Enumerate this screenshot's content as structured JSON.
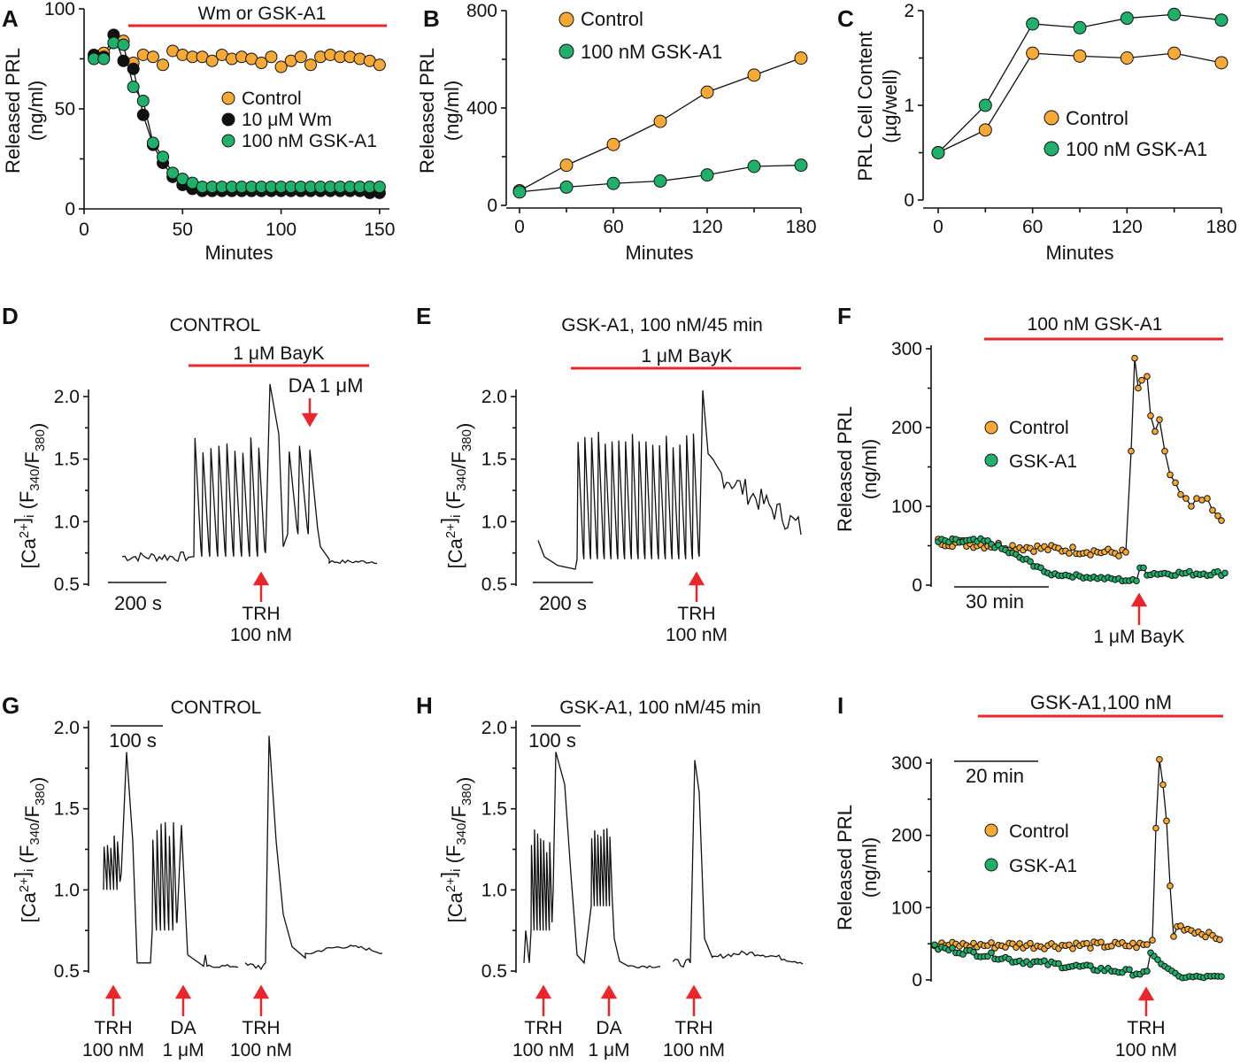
{
  "colors": {
    "control": "#f6a935",
    "wm": "#111111",
    "gsk": "#1fb06b",
    "red": "#e8262b"
  },
  "chart_data": [
    {
      "panel": "A",
      "type": "scatter",
      "xlabel": "Minutes",
      "ylabel": "Released PRL (ng/ml)",
      "xlim": [
        0,
        155
      ],
      "ylim": [
        0,
        100
      ],
      "xticks": [
        "0",
        "50",
        "100",
        "150"
      ],
      "yticks": [
        "0",
        "50",
        "100"
      ],
      "bar_label": "Wm or GSK-A1",
      "legend": [
        "Control",
        "10 μM Wm",
        "100 nM GSK-A1"
      ],
      "series": [
        {
          "name": "Control",
          "x": [
            5,
            10,
            15,
            20,
            25,
            30,
            35,
            40,
            45,
            50,
            55,
            60,
            65,
            70,
            75,
            80,
            85,
            90,
            95,
            100,
            105,
            110,
            115,
            120,
            125,
            130,
            135,
            140,
            145,
            150
          ],
          "y": [
            76,
            78,
            83,
            84,
            73,
            77,
            76,
            72,
            79,
            77,
            76,
            76,
            74,
            77,
            75,
            76,
            75,
            73,
            76,
            71,
            74,
            76,
            72,
            76,
            77,
            76,
            76,
            75,
            74,
            72
          ]
        },
        {
          "name": "10 μM Wm",
          "x": [
            5,
            10,
            15,
            20,
            25,
            30,
            35,
            40,
            45,
            50,
            55,
            60,
            65,
            70,
            75,
            80,
            85,
            90,
            95,
            100,
            105,
            110,
            115,
            120,
            125,
            130,
            135,
            140,
            145,
            150
          ],
          "y": [
            77,
            76,
            87,
            74,
            70,
            47,
            32,
            23,
            16,
            12,
            10,
            9,
            9,
            9,
            9,
            9,
            9,
            9,
            9,
            9,
            9,
            9,
            9,
            9,
            9,
            9,
            9,
            9,
            8,
            8
          ]
        },
        {
          "name": "100 nM GSK-A1",
          "x": [
            5,
            10,
            15,
            20,
            25,
            30,
            35,
            40,
            45,
            50,
            55,
            60,
            65,
            70,
            75,
            80,
            85,
            90,
            95,
            100,
            105,
            110,
            115,
            120,
            125,
            130,
            135,
            140,
            145,
            150
          ],
          "y": [
            75,
            75,
            83,
            82,
            61,
            54,
            33,
            26,
            18,
            15,
            13,
            11,
            11,
            11,
            11,
            11,
            11,
            11,
            11,
            11,
            11,
            11,
            11,
            11,
            11,
            11,
            11,
            11,
            11,
            11
          ]
        }
      ]
    },
    {
      "panel": "B",
      "type": "line",
      "xlabel": "Minutes",
      "ylabel": "Released PRL (ng/ml)",
      "xlim": [
        0,
        180
      ],
      "ylim": [
        0,
        800
      ],
      "xticks": [
        "0",
        "60",
        "120",
        "180"
      ],
      "yticks": [
        "0",
        "400",
        "800"
      ],
      "legend": [
        "Control",
        "100 nM GSK-A1"
      ],
      "series": [
        {
          "name": "Control",
          "x": [
            0,
            30,
            60,
            90,
            120,
            150,
            180
          ],
          "y": [
            60,
            165,
            250,
            345,
            465,
            535,
            605
          ]
        },
        {
          "name": "100 nM GSK-A1",
          "x": [
            0,
            30,
            60,
            90,
            120,
            150,
            180
          ],
          "y": [
            55,
            75,
            90,
            100,
            125,
            160,
            165
          ]
        }
      ]
    },
    {
      "panel": "C",
      "type": "line",
      "xlabel": "Minutes",
      "ylabel": "PRL Cell Content (μg/well)",
      "xlim": [
        0,
        180
      ],
      "ylim": [
        0,
        2
      ],
      "xticks": [
        "0",
        "60",
        "120",
        "180"
      ],
      "yticks": [
        "0",
        "1",
        "2"
      ],
      "legend": [
        "Control",
        "100 nM GSK-A1"
      ],
      "series": [
        {
          "name": "Control",
          "x": [
            0,
            30,
            60,
            90,
            120,
            150,
            180
          ],
          "y": [
            0.5,
            0.74,
            1.55,
            1.52,
            1.5,
            1.55,
            1.45
          ]
        },
        {
          "name": "100 nM GSK-A1",
          "x": [
            0,
            30,
            60,
            90,
            120,
            150,
            180
          ],
          "y": [
            0.5,
            1.0,
            1.86,
            1.82,
            1.92,
            1.96,
            1.9
          ]
        }
      ]
    },
    {
      "panel": "D",
      "type": "line",
      "title": "CONTROL",
      "ylabel": "[Ca2+]i (F340/F380)",
      "ylim": [
        0.5,
        2.0
      ],
      "yticks": [
        "0.5",
        "1.0",
        "1.5",
        "2.0"
      ],
      "scale_bar": "200 s",
      "bar_label": "1 μM BayK",
      "annotations": [
        "DA 1 μM",
        "TRH",
        "100 nM"
      ]
    },
    {
      "panel": "E",
      "type": "line",
      "title": "GSK-A1, 100 nM/45 min",
      "ylabel": "[Ca2+]i (F340/F380)",
      "ylim": [
        0.5,
        2.0
      ],
      "yticks": [
        "0.5",
        "1.0",
        "1.5",
        "2.0"
      ],
      "scale_bar": "200 s",
      "bar_label": "1 μM BayK",
      "annotations": [
        "TRH",
        "100 nM"
      ]
    },
    {
      "panel": "F",
      "type": "line",
      "ylabel": "Released PRL (ng/ml)",
      "ylim": [
        0,
        300
      ],
      "yticks": [
        "0",
        "100",
        "200",
        "300"
      ],
      "scale_bar": "30 min",
      "bar_label": "100 nM GSK-A1",
      "legend": [
        "Control",
        "GSK-A1"
      ],
      "annotations": [
        "1 μM BayK"
      ]
    },
    {
      "panel": "G",
      "type": "line",
      "title": "CONTROL",
      "ylabel": "[Ca2+]i (F340/F380)",
      "ylim": [
        0.5,
        2.0
      ],
      "yticks": [
        "0.5",
        "1.0",
        "1.5",
        "2.0"
      ],
      "scale_bar": "100 s",
      "annotations": [
        "TRH",
        "100 nM",
        "DA",
        "1 μM",
        "TRH",
        "100 nM"
      ]
    },
    {
      "panel": "H",
      "type": "line",
      "title": "GSK-A1, 100 nM/45 min",
      "ylabel": "[Ca2+]i (F340/F380)",
      "ylim": [
        0.5,
        2.0
      ],
      "yticks": [
        "0.5",
        "1.0",
        "1.5",
        "2.0"
      ],
      "scale_bar": "100 s",
      "annotations": [
        "TRH",
        "100 nM",
        "DA",
        "1 μM",
        "TRH",
        "100 nM"
      ]
    },
    {
      "panel": "I",
      "type": "line",
      "ylabel": "Released PRL (ng/ml)",
      "ylim": [
        0,
        300
      ],
      "yticks": [
        "0",
        "100",
        "200",
        "300"
      ],
      "scale_bar": "20 min",
      "bar_label": "GSK-A1,100 nM",
      "legend": [
        "Control",
        "GSK-A1"
      ],
      "annotations": [
        "TRH",
        "100 nM"
      ]
    }
  ]
}
